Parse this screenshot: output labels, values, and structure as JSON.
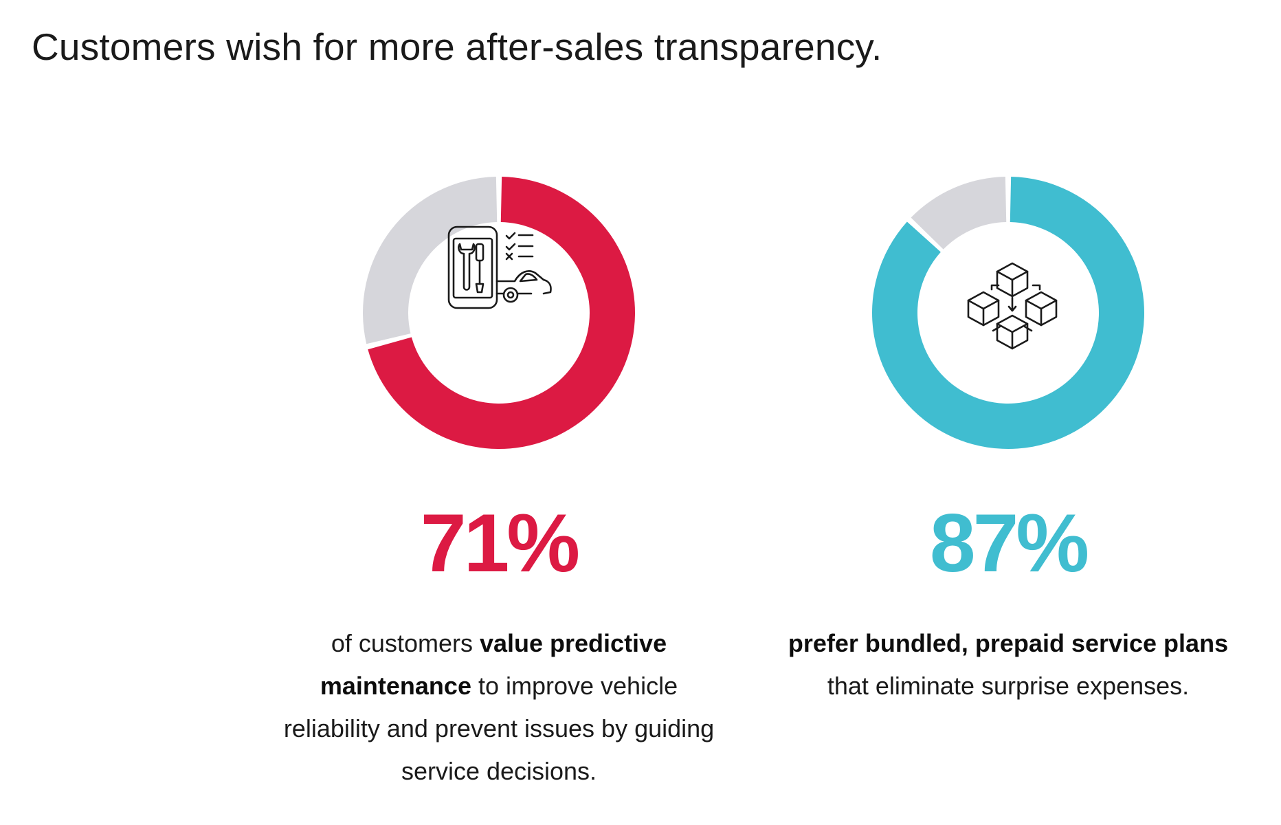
{
  "title": "Customers wish for more after-sales transparency.",
  "colors": {
    "red": "#dc1a43",
    "teal": "#40bdd0",
    "track": "#d6d6db",
    "icon": "#1a1a1a"
  },
  "chart_data": [
    {
      "type": "pie",
      "categories": [
        "value predictive maintenance",
        "other"
      ],
      "values": [
        71,
        29
      ],
      "colors": [
        "#dc1a43",
        "#d6d6db"
      ],
      "icon": "predictive-maintenance-icon",
      "percent_label": "71%",
      "description": {
        "pre": "of customers ",
        "bold": "value predictive maintenance",
        "post": " to improve vehicle reliability and prevent issues by guiding service decisions."
      }
    },
    {
      "type": "pie",
      "categories": [
        "prefer bundled, prepaid service plans",
        "other"
      ],
      "values": [
        87,
        13
      ],
      "colors": [
        "#40bdd0",
        "#d6d6db"
      ],
      "icon": "service-bundle-cubes-icon",
      "percent_label": "87%",
      "description": {
        "pre": "",
        "bold": "prefer bundled, prepaid service plans",
        "post": " that eliminate surprise expenses."
      }
    }
  ]
}
